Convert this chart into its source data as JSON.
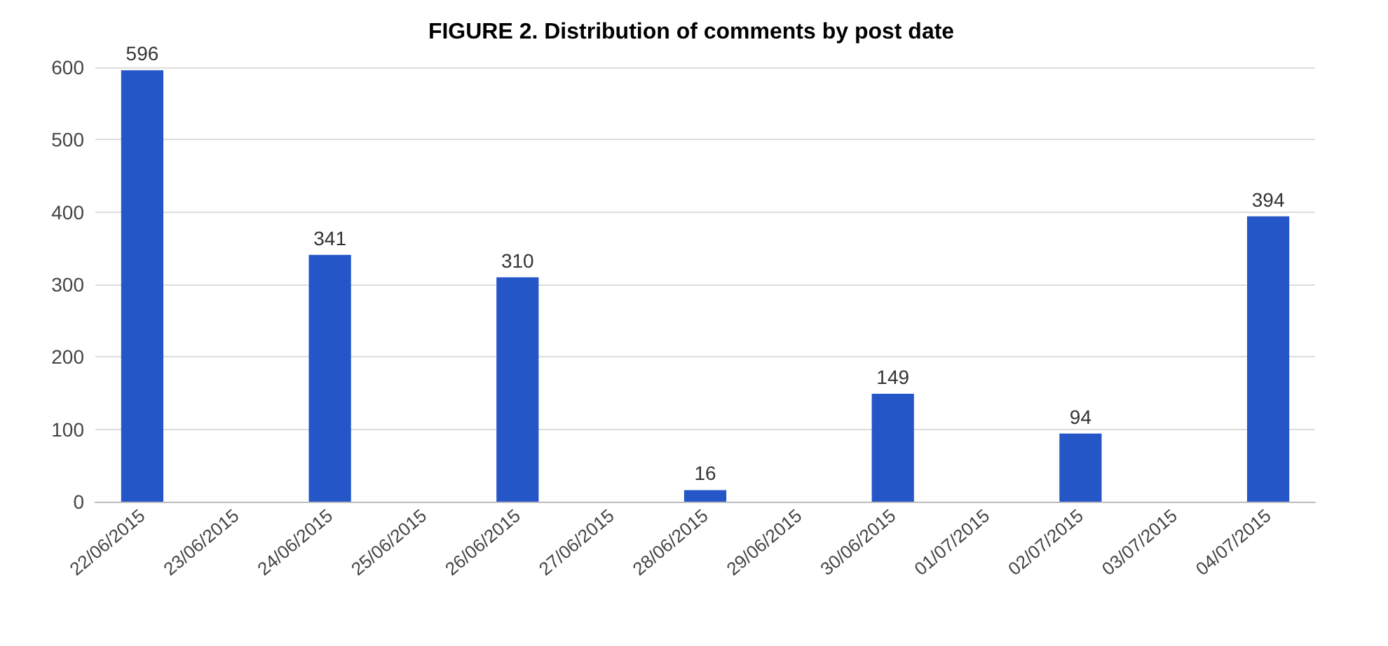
{
  "chart_data": {
    "type": "bar",
    "title": "FIGURE 2. Distribution of comments by post date",
    "categories": [
      "22/06/2015",
      "23/06/2015",
      "24/06/2015",
      "25/06/2015",
      "26/06/2015",
      "27/06/2015",
      "28/06/2015",
      "29/06/2015",
      "30/06/2015",
      "01/07/2015",
      "02/07/2015",
      "03/07/2015",
      "04/07/2015"
    ],
    "values": [
      596,
      null,
      341,
      null,
      310,
      null,
      16,
      null,
      149,
      null,
      94,
      null,
      394
    ],
    "color": "#2456c8",
    "ylim": [
      0,
      600
    ],
    "yticks": [
      0,
      100,
      200,
      300,
      400,
      500,
      600
    ],
    "grid": "y",
    "data_labels": true
  }
}
